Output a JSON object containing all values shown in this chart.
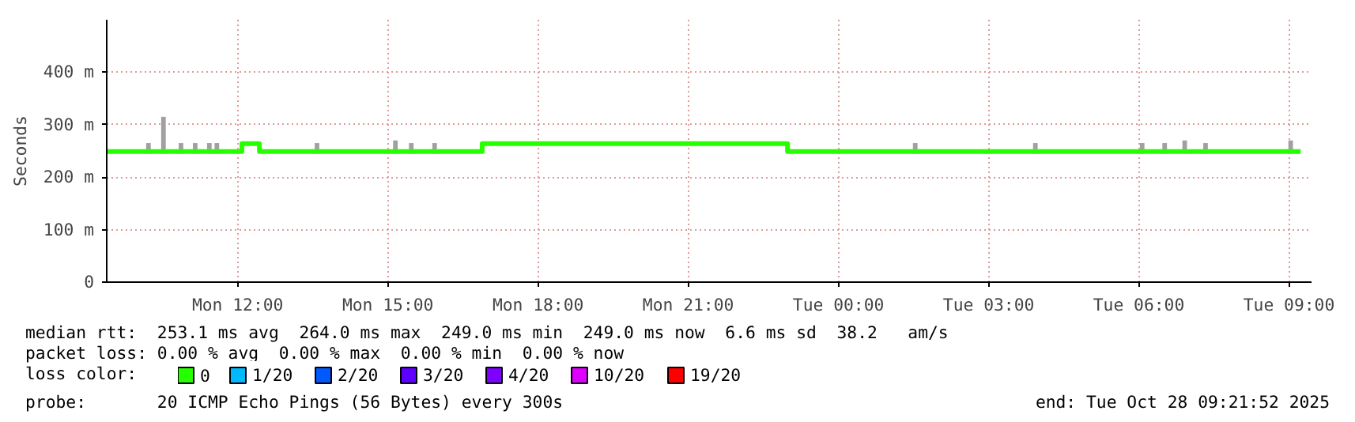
{
  "chart_data": {
    "type": "step",
    "ylabel": "Seconds",
    "legend_title": "loss color:",
    "xlim": [
      "2025-10-27T09:23",
      "2025-10-28T09:27"
    ],
    "ylim": [
      0,
      500
    ],
    "xticks": [
      {
        "value": "2025-10-27T12:00",
        "label": "Mon 12:00"
      },
      {
        "value": "2025-10-27T15:00",
        "label": "Mon 15:00"
      },
      {
        "value": "2025-10-27T18:00",
        "label": "Mon 18:00"
      },
      {
        "value": "2025-10-27T21:00",
        "label": "Mon 21:00"
      },
      {
        "value": "2025-10-28T00:00",
        "label": "Tue 00:00"
      },
      {
        "value": "2025-10-28T03:00",
        "label": "Tue 03:00"
      },
      {
        "value": "2025-10-28T06:00",
        "label": "Tue 06:00"
      },
      {
        "value": "2025-10-28T09:00",
        "label": "Tue 09:00"
      }
    ],
    "yticks": [
      0,
      {
        "value": 100,
        "label": "100 m"
      },
      {
        "value": 200,
        "label": "200 m"
      },
      {
        "value": 300,
        "label": "300 m"
      },
      {
        "value": 400,
        "label": "400 m"
      }
    ],
    "grid": true,
    "legend": "bottom",
    "marker": "none",
    "line_style": "solid",
    "series": [
      {
        "type": "bar",
        "color": "#a0a0a0",
        "x": [
          "2025-10-27T10:13",
          "2025-10-27T10:31",
          "2025-10-27T10:52",
          "2025-10-27T11:09",
          "2025-10-27T11:26",
          "2025-10-27T11:35",
          "2025-10-27T13:35",
          "2025-10-27T15:09",
          "2025-10-27T15:28",
          "2025-10-27T15:56",
          "2025-10-28T01:32",
          "2025-10-28T03:56",
          "2025-10-28T06:04",
          "2025-10-28T06:31",
          "2025-10-28T06:55",
          "2025-10-28T07:20",
          "2025-10-28T09:02"
        ],
        "base": [
          245,
          245,
          245,
          245,
          245,
          245,
          245,
          245,
          245,
          245,
          245,
          245,
          245,
          245,
          245,
          245,
          245
        ],
        "values": [
          20,
          70,
          20,
          20,
          20,
          20,
          20,
          25,
          20,
          20,
          20,
          20,
          20,
          20,
          25,
          20,
          25
        ]
      },
      {
        "name": "0",
        "color": "#26ff00",
        "x": [
          "2025-10-27T09:23",
          "2025-10-27T12:05",
          "2025-10-27T12:26",
          "2025-10-27T16:53",
          "2025-10-27T22:59",
          "2025-10-28T09:14"
        ],
        "values": [
          249,
          264,
          249,
          264,
          249,
          249
        ]
      },
      {
        "name": "1/20",
        "color": "#00b8ff"
      },
      {
        "name": "2/20",
        "color": "#0059ff"
      },
      {
        "name": "3/20",
        "color": "#5e00ff"
      },
      {
        "name": "4/20",
        "color": "#7e00ff"
      },
      {
        "name": "10/20",
        "color": "#dd00ff"
      },
      {
        "name": "19/20",
        "color": "#ff0000"
      }
    ],
    "annotations": [
      "median rtt:  253.1 ms avg  264.0 ms max  249.0 ms min  249.0 ms now  6.6 ms sd  38.2   am/s",
      "packet loss: 0.00 % avg  0.00 % max  0.00 % min  0.00 % now",
      "probe:       20 ICMP Echo Pings (56 Bytes) every 300s",
      "end: Tue Oct 28 09:21:52 2025"
    ]
  }
}
